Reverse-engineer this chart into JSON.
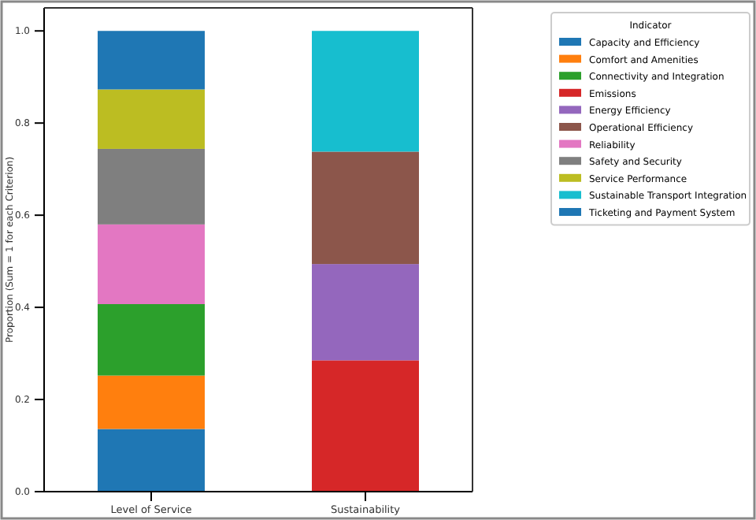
{
  "chart_data": {
    "type": "bar",
    "stacked": true,
    "ylabel": "Proportion (Sum = 1 for each Criterion)",
    "legend_title": "Indicator",
    "legend": "top right",
    "categories": [
      "Level of Service",
      "Sustainability"
    ],
    "ylim": [
      0,
      1.05
    ],
    "yticks": [
      {
        "value": 0,
        "label": "0.0"
      },
      {
        "value": 0.2,
        "label": "0.2"
      },
      {
        "value": 0.4,
        "label": "0.4"
      },
      {
        "value": 0.6,
        "label": "0.6"
      },
      {
        "value": 0.8,
        "label": "0.8"
      },
      {
        "value": 1,
        "label": "1.0"
      }
    ],
    "series": [
      {
        "name": "Capacity and Efficiency",
        "color": "#1f77b4",
        "values": [
          0.136,
          0
        ]
      },
      {
        "name": "Comfort and Amenities",
        "color": "#ff7f0e",
        "values": [
          0.116,
          0
        ]
      },
      {
        "name": "Connectivity and Integration",
        "color": "#2ca02c",
        "values": [
          0.155,
          0
        ]
      },
      {
        "name": "Emissions",
        "color": "#d62728",
        "values": [
          0,
          0.285
        ]
      },
      {
        "name": "Energy Efficiency",
        "color": "#9467bd",
        "values": [
          0,
          0.209
        ]
      },
      {
        "name": "Operational Efficiency",
        "color": "#8c564b",
        "values": [
          0,
          0.244
        ]
      },
      {
        "name": "Reliability",
        "color": "#e377c2",
        "values": [
          0.173,
          0
        ]
      },
      {
        "name": "Safety and Security",
        "color": "#7f7f7f",
        "values": [
          0.164,
          0
        ]
      },
      {
        "name": "Service Performance",
        "color": "#bcbd22",
        "values": [
          0.129,
          0
        ]
      },
      {
        "name": "Sustainable Transport Integration",
        "color": "#17becf",
        "values": [
          0,
          0.262
        ]
      },
      {
        "name": "Ticketing and Payment System",
        "color": "#1f77b4",
        "values": [
          0.127,
          0
        ]
      }
    ]
  }
}
